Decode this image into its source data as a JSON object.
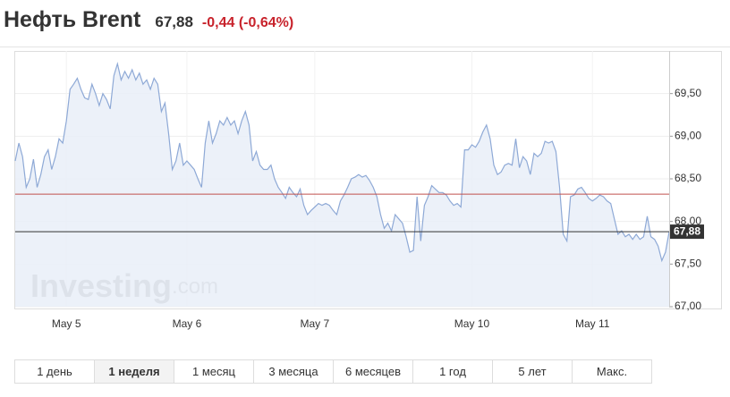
{
  "header": {
    "title": "Нефть Brent",
    "price": "67,88",
    "change": "-0,44 (-0,64%)"
  },
  "chart_data": {
    "type": "area",
    "values": [
      68.71,
      68.92,
      68.76,
      68.4,
      68.5,
      68.73,
      68.4,
      68.55,
      68.76,
      68.84,
      68.61,
      68.76,
      68.97,
      68.92,
      69.18,
      69.55,
      69.61,
      69.68,
      69.55,
      69.45,
      69.43,
      69.61,
      69.5,
      69.36,
      69.5,
      69.43,
      69.32,
      69.71,
      69.85,
      69.66,
      69.76,
      69.68,
      69.78,
      69.66,
      69.74,
      69.61,
      69.66,
      69.55,
      69.68,
      69.61,
      69.29,
      69.39,
      69.03,
      68.61,
      68.71,
      68.92,
      68.66,
      68.71,
      68.66,
      68.61,
      68.5,
      68.4,
      68.92,
      69.18,
      68.92,
      69.03,
      69.18,
      69.13,
      69.22,
      69.13,
      69.18,
      69.03,
      69.18,
      69.29,
      69.13,
      68.71,
      68.82,
      68.66,
      68.61,
      68.61,
      68.66,
      68.5,
      68.4,
      68.34,
      68.27,
      68.4,
      68.34,
      68.29,
      68.38,
      68.19,
      68.08,
      68.13,
      68.17,
      68.21,
      68.19,
      68.21,
      68.19,
      68.13,
      68.08,
      68.24,
      68.31,
      68.4,
      68.5,
      68.52,
      68.55,
      68.52,
      68.54,
      68.48,
      68.4,
      68.29,
      68.08,
      67.92,
      67.98,
      67.89,
      68.08,
      68.03,
      67.98,
      67.82,
      67.64,
      67.66,
      68.29,
      67.77,
      68.19,
      68.29,
      68.42,
      68.38,
      68.34,
      68.34,
      68.31,
      68.24,
      68.19,
      68.21,
      68.17,
      68.84,
      68.84,
      68.9,
      68.87,
      68.94,
      69.05,
      69.13,
      68.97,
      68.66,
      68.55,
      68.58,
      68.66,
      68.68,
      68.66,
      68.97,
      68.63,
      68.76,
      68.71,
      68.55,
      68.8,
      68.76,
      68.8,
      68.94,
      68.92,
      68.94,
      68.82,
      68.4,
      67.85,
      67.77,
      68.29,
      68.31,
      68.38,
      68.4,
      68.34,
      68.27,
      68.24,
      68.27,
      68.31,
      68.29,
      68.24,
      68.21,
      68.03,
      67.85,
      67.89,
      67.82,
      67.85,
      67.79,
      67.85,
      67.79,
      67.82,
      68.06,
      67.82,
      67.79,
      67.71,
      67.54,
      67.64,
      67.88
    ],
    "color": "#8ea9d6",
    "fill": "#e9eff8",
    "xlim": [
      0,
      179
    ],
    "xticks": [
      {
        "value": 14,
        "label": "May 5"
      },
      {
        "value": 47,
        "label": "May 6"
      },
      {
        "value": 82,
        "label": "May 7"
      },
      {
        "value": 125,
        "label": "May 10"
      },
      {
        "value": 158,
        "label": "May 11"
      }
    ],
    "ylim": [
      67,
      70
    ],
    "yticks": [
      {
        "value": 67,
        "label": "67,00"
      },
      {
        "value": 67.5,
        "label": "67,50"
      },
      {
        "value": 68,
        "label": "68,00"
      },
      {
        "value": 68.5,
        "label": "68,50"
      },
      {
        "value": 69,
        "label": "69,00"
      },
      {
        "value": 69.5,
        "label": "69,50"
      }
    ],
    "grid": true,
    "previous_close": {
      "value": 68.32,
      "color": "#c0504d"
    },
    "last_price": {
      "value": 67.88,
      "label": "67,88",
      "color": "#333333"
    },
    "watermark": [
      "Investing",
      ".com"
    ]
  },
  "periods": [
    "1 день",
    "1 неделя",
    "1 месяц",
    "3 месяца",
    "6 месяцев",
    "1 год",
    "5 лет",
    "Макс."
  ],
  "active_period": 1
}
